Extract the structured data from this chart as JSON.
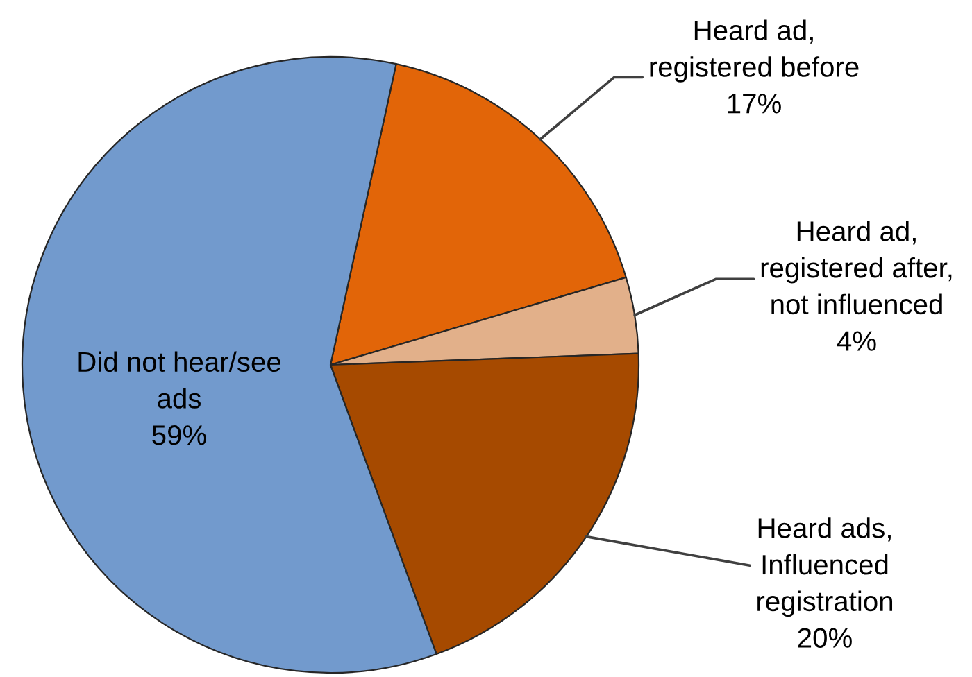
{
  "chart_data": {
    "type": "pie",
    "categories": [
      "Heard ad,\nregistered before",
      "Heard ad,\nregistered after,\nnot influenced",
      "Heard ads,\nInfluenced\nregistration",
      "Did not hear/see\nads"
    ],
    "values": [
      17,
      4,
      20,
      59
    ],
    "colors": [
      "#e26508",
      "#e2b08a",
      "#a64a00",
      "#729acd"
    ],
    "value_labels": [
      "17%",
      "4%",
      "20%",
      "59%"
    ]
  }
}
